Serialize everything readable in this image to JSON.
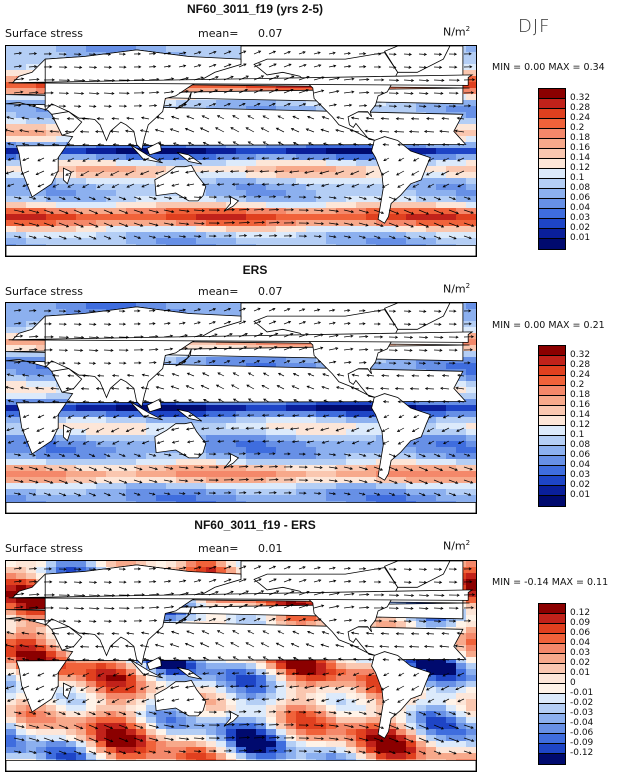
{
  "season": "DJF",
  "panels": [
    {
      "title": "NF60_3011_f19 (yrs 2-5)",
      "variable": "Surface stress",
      "mean_label": "mean=",
      "mean_value": "0.07",
      "units_base": "N/m",
      "units_exp": "2",
      "min_label": "MIN =",
      "min_value": "0.00",
      "max_label": "MAX =",
      "max_value": "0.34",
      "colorbar_labels": [
        "0.32",
        "0.28",
        "0.24",
        "0.2",
        "0.18",
        "0.16",
        "0.14",
        "0.12",
        "0.1",
        "0.08",
        "0.06",
        "0.04",
        "0.03",
        "0.02",
        "0.01"
      ],
      "colorbar_colors": [
        "#8b0000",
        "#c1221a",
        "#e0401f",
        "#f0623a",
        "#f4886a",
        "#f7a98b",
        "#fac7b0",
        "#fde6d8",
        "#dceafb",
        "#b4cef5",
        "#8cb0ef",
        "#6790e6",
        "#3f6dde",
        "#1e45c6",
        "#0a1f9a",
        "#000a6e"
      ],
      "map_style": "model"
    },
    {
      "title": "ERS",
      "variable": "Surface stress",
      "mean_label": "mean=",
      "mean_value": "0.07",
      "units_base": "N/m",
      "units_exp": "2",
      "min_label": "MIN =",
      "min_value": "0.00",
      "max_label": "MAX =",
      "max_value": "0.21",
      "colorbar_labels": [
        "0.32",
        "0.28",
        "0.24",
        "0.2",
        "0.18",
        "0.16",
        "0.14",
        "0.12",
        "0.1",
        "0.08",
        "0.06",
        "0.04",
        "0.03",
        "0.02",
        "0.01"
      ],
      "colorbar_colors": [
        "#8b0000",
        "#c1221a",
        "#e0401f",
        "#f0623a",
        "#f4886a",
        "#f7a98b",
        "#fac7b0",
        "#fde6d8",
        "#dceafb",
        "#b4cef5",
        "#8cb0ef",
        "#6790e6",
        "#3f6dde",
        "#1e45c6",
        "#0a1f9a",
        "#000a6e"
      ],
      "map_style": "obs"
    },
    {
      "title": "NF60_3011_f19 - ERS",
      "variable": "Surface stress",
      "mean_label": "mean=",
      "mean_value": "0.01",
      "units_base": "N/m",
      "units_exp": "2",
      "min_label": "MIN =",
      "min_value": "-0.14",
      "max_label": "MAX =",
      "max_value": "0.11",
      "colorbar_labels": [
        "0.12",
        "0.09",
        "0.06",
        "0.04",
        "0.03",
        "0.02",
        "0.01",
        "0",
        "-0.01",
        "-0.02",
        "-0.03",
        "-0.04",
        "-0.06",
        "-0.09",
        "-0.12"
      ],
      "colorbar_colors": [
        "#8b0000",
        "#c1221a",
        "#e0401f",
        "#f0623a",
        "#f4886a",
        "#f7a98b",
        "#fac7b0",
        "#fde6d8",
        "#fff3e8",
        "#dceafb",
        "#b4cef5",
        "#8cb0ef",
        "#6790e6",
        "#3f6dde",
        "#1e45c6",
        "#000a6e"
      ],
      "map_style": "diff"
    }
  ]
}
